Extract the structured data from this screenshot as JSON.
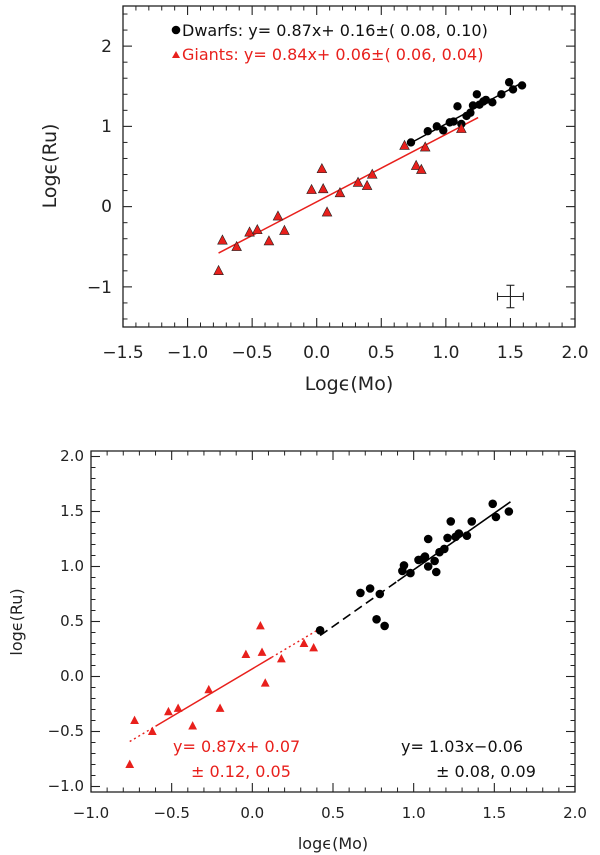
{
  "chart_data": [
    {
      "type": "scatter",
      "panel": "top",
      "xlabel": "Logϵ(Mo)",
      "ylabel": "Logϵ(Ru)",
      "xlim": [
        -1.5,
        2.0
      ],
      "ylim": [
        -1.5,
        2.5
      ],
      "xticks": [
        "−1.5",
        "−1.0",
        "−0.5",
        "0.0",
        "0.5",
        "1.0",
        "1.5",
        "2.0"
      ],
      "yticks": [
        "−1",
        "0",
        "1",
        "2"
      ],
      "legend": {
        "dwarfs_text": "Dwarfs: y= 0.87x+ 0.16±( 0.08, 0.10)",
        "giants_text": "Giants: y= 0.84x+ 0.06±( 0.06, 0.04)"
      },
      "colors": {
        "dwarfs": "#000000",
        "giants": "#e8201c"
      },
      "error_bar": {
        "x": 1.5,
        "y": -1.12,
        "dx": 0.1,
        "dy": 0.14
      },
      "fits": [
        {
          "name": "Dwarfs",
          "slope": 0.87,
          "intercept": 0.16,
          "x_range": [
            0.72,
            1.6
          ]
        },
        {
          "name": "Giants",
          "slope": 0.84,
          "intercept": 0.06,
          "x_range": [
            -0.76,
            1.25
          ]
        }
      ],
      "series": [
        {
          "name": "Dwarfs",
          "marker": "circle",
          "x": [
            0.73,
            0.86,
            0.93,
            0.98,
            1.03,
            1.06,
            1.09,
            1.12,
            1.16,
            1.19,
            1.21,
            1.24,
            1.26,
            1.29,
            1.31,
            1.36,
            1.43,
            1.49,
            1.52,
            1.59
          ],
          "y": [
            0.8,
            0.94,
            1.0,
            0.95,
            1.05,
            1.06,
            1.25,
            1.03,
            1.13,
            1.17,
            1.26,
            1.4,
            1.27,
            1.31,
            1.33,
            1.3,
            1.4,
            1.55,
            1.46,
            1.51
          ]
        },
        {
          "name": "Giants",
          "marker": "triangle",
          "x": [
            -0.76,
            -0.73,
            -0.62,
            -0.52,
            -0.46,
            -0.37,
            -0.3,
            -0.25,
            -0.04,
            0.04,
            0.05,
            0.08,
            0.18,
            0.32,
            0.39,
            0.43,
            0.68,
            0.77,
            0.81,
            0.84,
            1.12
          ],
          "y": [
            -0.8,
            -0.42,
            -0.5,
            -0.32,
            -0.29,
            -0.43,
            -0.12,
            -0.3,
            0.21,
            0.47,
            0.22,
            -0.07,
            0.17,
            0.3,
            0.26,
            0.4,
            0.76,
            0.51,
            0.46,
            0.74,
            0.97
          ]
        }
      ]
    },
    {
      "type": "scatter",
      "panel": "bottom",
      "xlabel": "logϵ(Mo)",
      "ylabel": "logϵ(Ru)",
      "xlim": [
        -1.0,
        2.0
      ],
      "ylim": [
        -1.05,
        2.05
      ],
      "xticks": [
        "−1.0",
        "−0.5",
        "0.0",
        "0.5",
        "1.0",
        "1.5",
        "2.0"
      ],
      "yticks": [
        "−1.0",
        "−0.5",
        "0.0",
        "0.5",
        "1.0",
        "1.5",
        "2.0"
      ],
      "annotations": {
        "red_line1": "y= 0.87x+ 0.07",
        "red_line2": "± 0.12, 0.05",
        "black_line1": "y= 1.03x−0.06",
        "black_line2": "± 0.08, 0.09"
      },
      "colors": {
        "black": "#000000",
        "red": "#e8201c"
      },
      "fits": [
        {
          "name": "red",
          "slope": 0.87,
          "intercept": 0.07,
          "x_range": [
            -0.76,
            0.4
          ]
        },
        {
          "name": "black",
          "slope": 1.03,
          "intercept": -0.06,
          "x_range": [
            0.42,
            1.6
          ]
        }
      ],
      "series": [
        {
          "name": "Circles",
          "marker": "circle",
          "x": [
            0.42,
            0.67,
            0.73,
            0.77,
            0.79,
            0.82,
            0.93,
            0.94,
            0.98,
            1.03,
            1.06,
            1.07,
            1.09,
            1.09,
            1.13,
            1.14,
            1.16,
            1.19,
            1.21,
            1.23,
            1.26,
            1.28,
            1.33,
            1.36,
            1.49,
            1.51,
            1.59
          ],
          "y": [
            0.42,
            0.76,
            0.8,
            0.52,
            0.75,
            0.46,
            0.96,
            1.01,
            0.94,
            1.06,
            1.07,
            1.09,
            1.0,
            1.25,
            1.05,
            0.95,
            1.13,
            1.16,
            1.26,
            1.41,
            1.27,
            1.3,
            1.28,
            1.41,
            1.57,
            1.45,
            1.5
          ]
        },
        {
          "name": "Triangles",
          "marker": "triangle",
          "x": [
            -0.76,
            -0.73,
            -0.62,
            -0.52,
            -0.46,
            -0.37,
            -0.27,
            -0.2,
            -0.04,
            0.05,
            0.06,
            0.08,
            0.18,
            0.32,
            0.38
          ],
          "y": [
            -0.8,
            -0.4,
            -0.5,
            -0.32,
            -0.29,
            -0.45,
            -0.12,
            -0.29,
            0.2,
            0.46,
            0.22,
            -0.06,
            0.16,
            0.3,
            0.26
          ]
        }
      ]
    }
  ]
}
